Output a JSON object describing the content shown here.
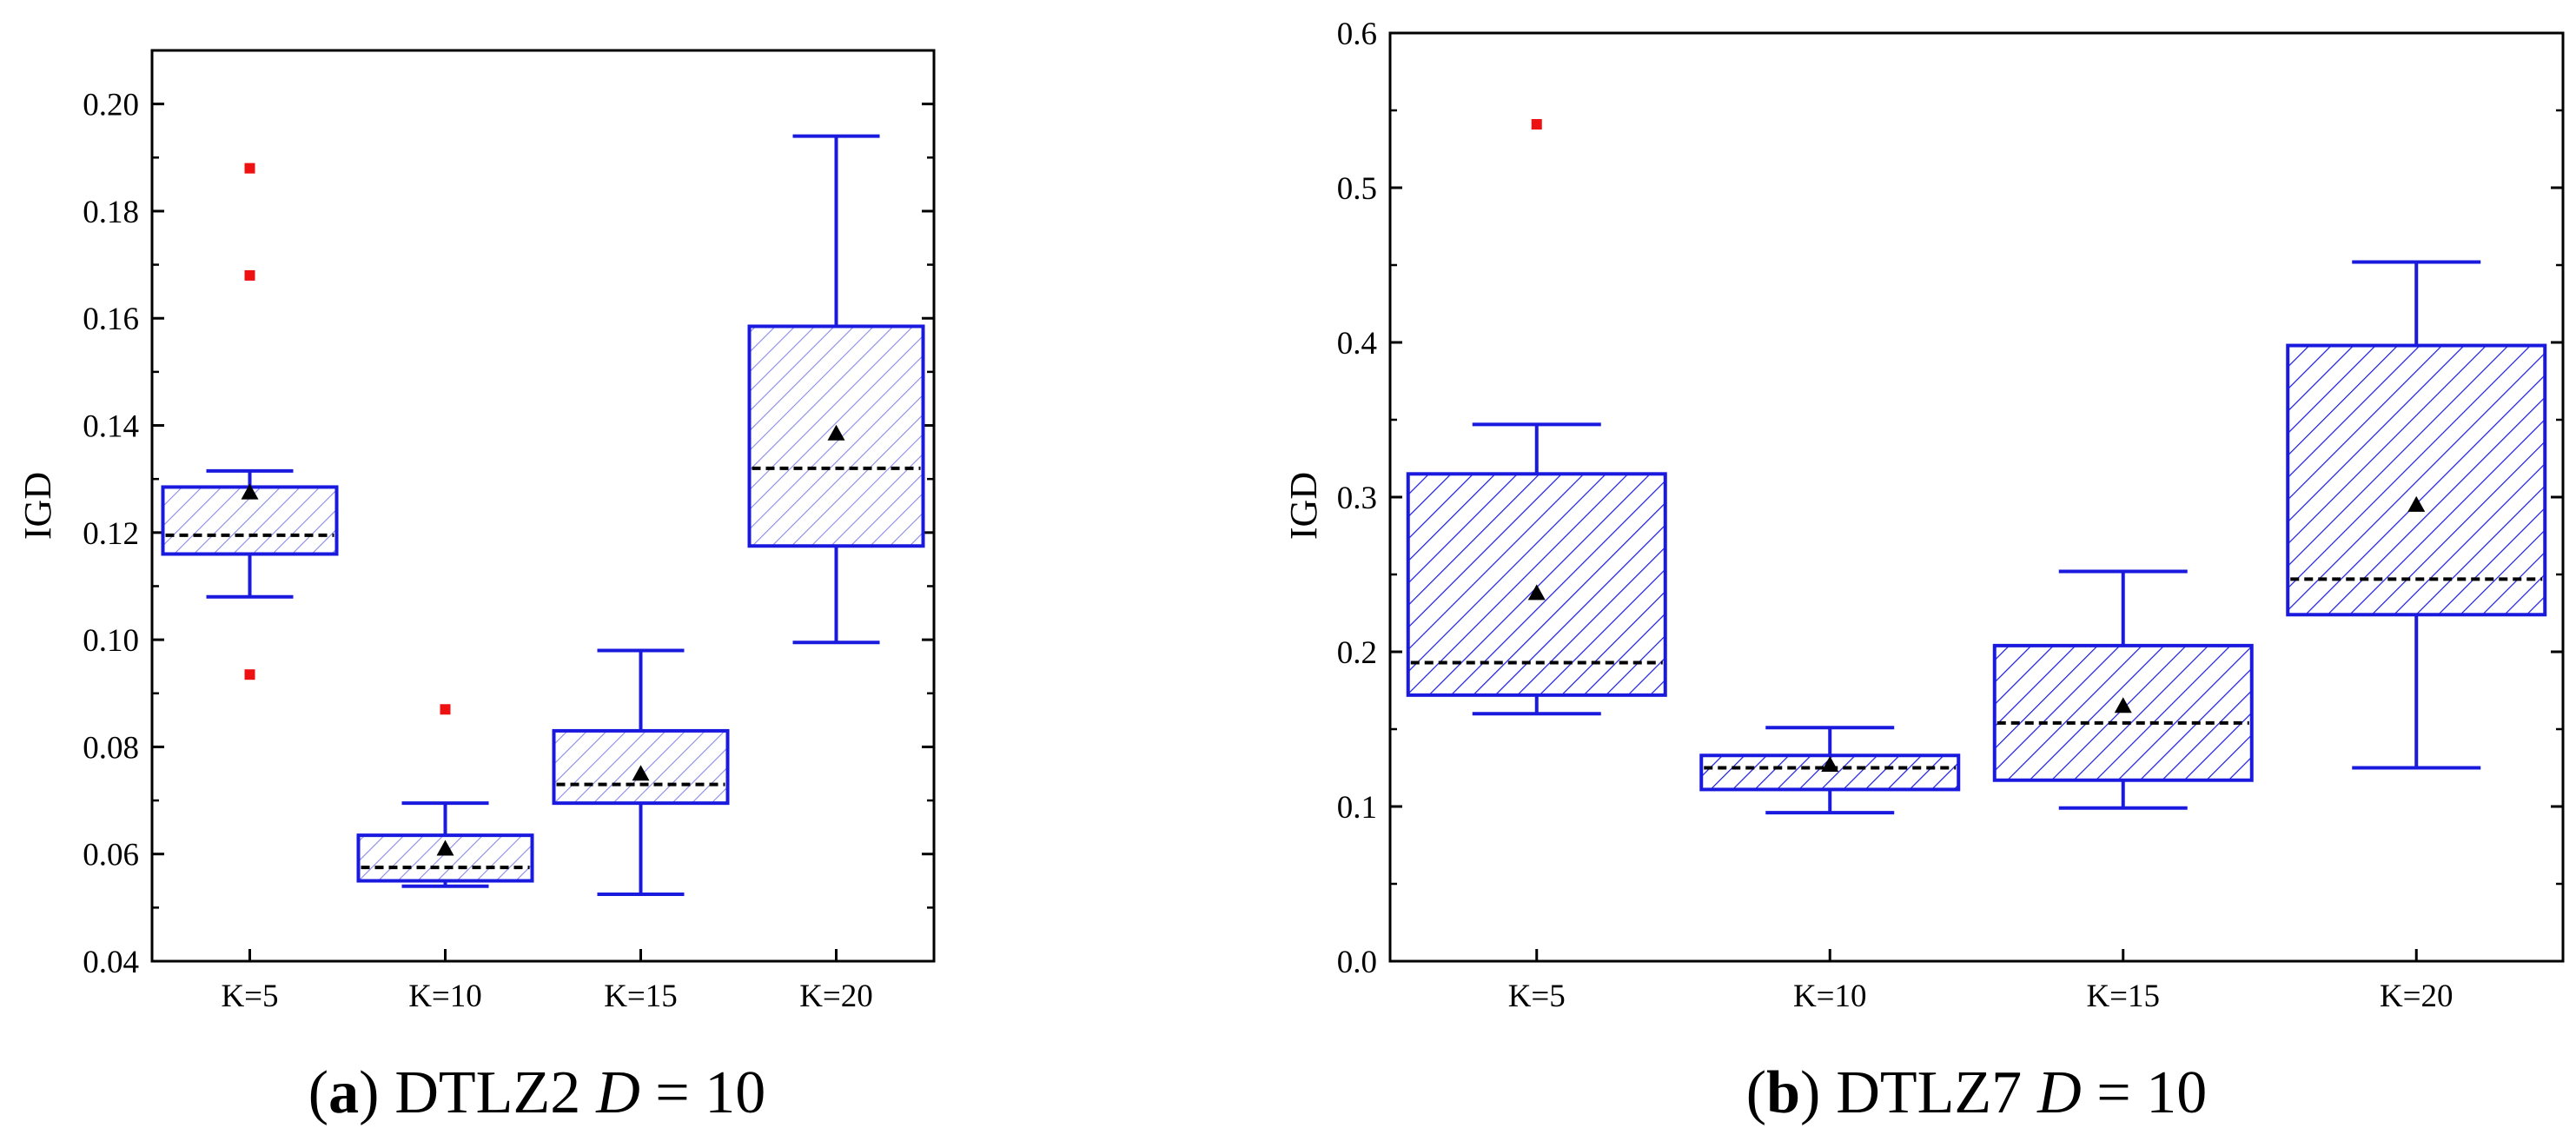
{
  "chart_data": [
    {
      "type": "box",
      "caption": {
        "open": "(",
        "letter": "a",
        "close": ")",
        "name": "DTLZ2",
        "var": "D",
        "rest": " = 10"
      },
      "ylabel": "IGD",
      "xlabel": "",
      "ylim": [
        0.04,
        0.21
      ],
      "yticks": [
        "0.04",
        "0.06",
        "0.08",
        "0.10",
        "0.12",
        "0.14",
        "0.16",
        "0.18",
        "0.20"
      ],
      "tick_values": [
        0.04,
        0.06,
        0.08,
        0.1,
        0.12,
        0.14,
        0.16,
        0.18,
        0.2
      ],
      "categories": [
        "K=5",
        "K=10",
        "K=15",
        "K=20"
      ],
      "boxes": [
        {
          "whisker_low": 0.108,
          "q1": 0.116,
          "median": 0.1195,
          "q3": 0.1285,
          "whisker_high": 0.1315,
          "mean": 0.1275,
          "outliers": [
            0.188,
            0.168,
            0.0935
          ]
        },
        {
          "whisker_low": 0.054,
          "q1": 0.055,
          "median": 0.0575,
          "q3": 0.0635,
          "whisker_high": 0.0695,
          "mean": 0.061,
          "outliers": [
            0.087
          ]
        },
        {
          "whisker_low": 0.0525,
          "q1": 0.0695,
          "median": 0.073,
          "q3": 0.083,
          "whisker_high": 0.098,
          "mean": 0.075,
          "outliers": []
        },
        {
          "whisker_low": 0.0995,
          "q1": 0.1175,
          "median": 0.132,
          "q3": 0.1585,
          "whisker_high": 0.194,
          "mean": 0.1385,
          "outliers": []
        }
      ],
      "box_style": "light-hatch"
    },
    {
      "type": "box",
      "caption": {
        "open": "(",
        "letter": "b",
        "close": ")",
        "name": "DTLZ7",
        "var": "D",
        "rest": " = 10"
      },
      "ylabel": "IGD",
      "xlabel": "",
      "ylim": [
        0.0,
        0.6
      ],
      "yticks": [
        "0.0",
        "0.1",
        "0.2",
        "0.3",
        "0.4",
        "0.5",
        "0.6"
      ],
      "tick_values": [
        0.0,
        0.1,
        0.2,
        0.3,
        0.4,
        0.5,
        0.6
      ],
      "categories": [
        "K=5",
        "K=10",
        "K=15",
        "K=20"
      ],
      "boxes": [
        {
          "whisker_low": 0.16,
          "q1": 0.172,
          "median": 0.193,
          "q3": 0.315,
          "whisker_high": 0.347,
          "mean": 0.238,
          "outliers": [
            0.541
          ]
        },
        {
          "whisker_low": 0.096,
          "q1": 0.111,
          "median": 0.125,
          "q3": 0.133,
          "whisker_high": 0.151,
          "mean": 0.127,
          "outliers": []
        },
        {
          "whisker_low": 0.099,
          "q1": 0.117,
          "median": 0.154,
          "q3": 0.204,
          "whisker_high": 0.252,
          "mean": 0.165,
          "outliers": []
        },
        {
          "whisker_low": 0.125,
          "q1": 0.224,
          "median": 0.247,
          "q3": 0.398,
          "whisker_high": 0.452,
          "mean": 0.295,
          "outliers": []
        }
      ],
      "box_style": "dark-hatch"
    }
  ],
  "colors": {
    "box": "#1a1adf",
    "hatch_light": "#8a8ae6",
    "hatch_dark": "#1a1adf",
    "outlier": "#ee1111",
    "median": "#000000",
    "mean": "#000000",
    "axis": "#000000"
  }
}
